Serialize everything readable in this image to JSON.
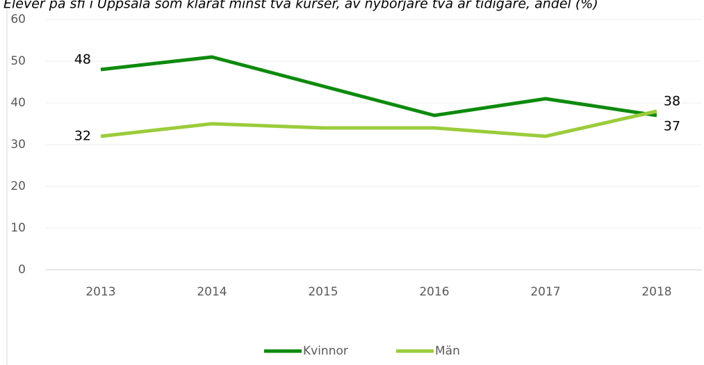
{
  "chart_data": {
    "type": "line",
    "title": "Elever på sfi i Uppsala som klarat minst två kurser, av nybörjare två år tidigare, andel (%)",
    "categories": [
      "2013",
      "2014",
      "2015",
      "2016",
      "2017",
      "2018"
    ],
    "series": [
      {
        "name": "Kvinnor",
        "color": "#0d8a0d",
        "values": [
          48,
          51,
          44,
          37,
          41,
          37
        ],
        "value_labels": [
          "48",
          null,
          null,
          null,
          null,
          "37"
        ]
      },
      {
        "name": "Män",
        "color": "#9bcc3c",
        "values": [
          32,
          35,
          34,
          34,
          32,
          38
        ],
        "value_labels": [
          "32",
          null,
          null,
          null,
          null,
          "38"
        ]
      }
    ],
    "ylim": [
      0,
      60
    ],
    "yticks": [
      0,
      10,
      20,
      30,
      40,
      50,
      60
    ],
    "grid": true,
    "legend": "bottom"
  }
}
